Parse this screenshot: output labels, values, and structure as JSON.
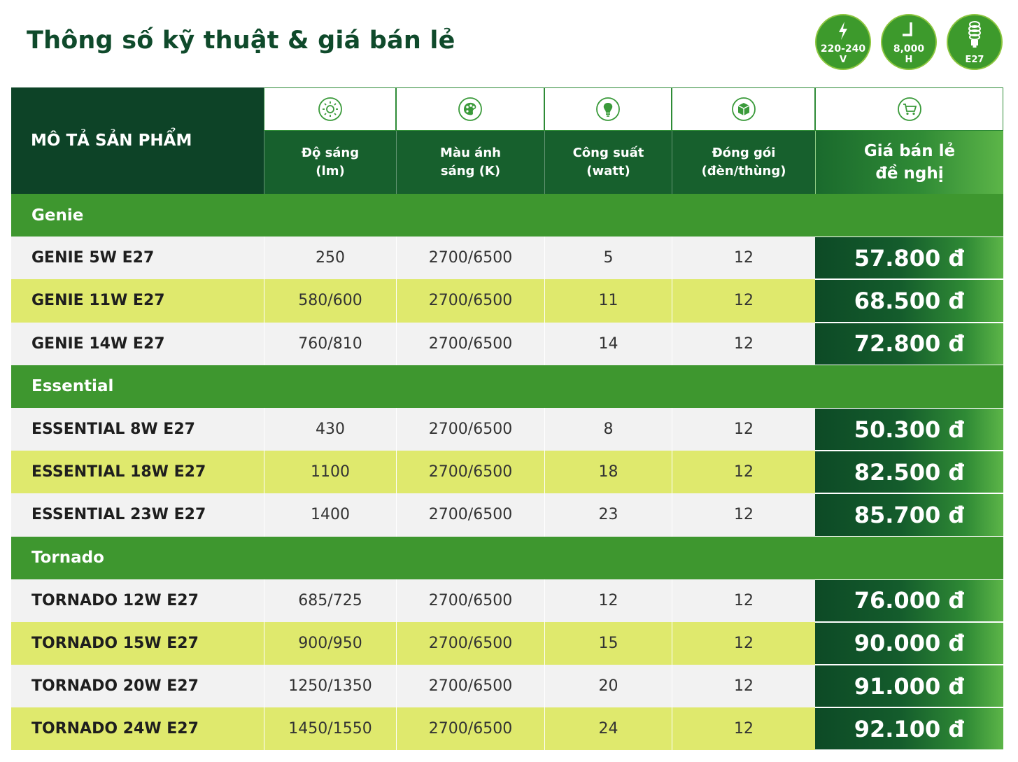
{
  "title": "Thông số kỹ thuật & giá bán lẻ",
  "badges": [
    {
      "icon": "lightning-icon",
      "line1": "220-240",
      "line2": "V"
    },
    {
      "icon": "clock-icon",
      "line1": "8,000",
      "line2": "H"
    },
    {
      "icon": "spiral-bulb-icon",
      "line1": "",
      "line2": "E27"
    }
  ],
  "header": {
    "description": "MÔ TẢ SẢN PHẨM",
    "columns": [
      {
        "icon": "sun-icon",
        "label": "Độ sáng\n(lm)"
      },
      {
        "icon": "palette-icon",
        "label": "Màu ánh\nsáng (K)"
      },
      {
        "icon": "bulb-icon",
        "label": "Công suất\n(watt)"
      },
      {
        "icon": "box-icon",
        "label": "Đóng gói\n(đèn/thùng)"
      },
      {
        "icon": "cart-icon",
        "label": "Giá bán lẻ\nđề nghị"
      }
    ]
  },
  "groups": [
    {
      "name": "Genie",
      "rows": [
        {
          "name": "GENIE 5W E27",
          "lumen": "250",
          "color": "2700/6500",
          "watt": "5",
          "pack": "12",
          "price": "57.800 đ"
        },
        {
          "name": "GENIE 11W E27",
          "lumen": "580/600",
          "color": "2700/6500",
          "watt": "11",
          "pack": "12",
          "price": "68.500 đ"
        },
        {
          "name": "GENIE 14W E27",
          "lumen": "760/810",
          "color": "2700/6500",
          "watt": "14",
          "pack": "12",
          "price": "72.800 đ"
        }
      ]
    },
    {
      "name": "Essential",
      "rows": [
        {
          "name": "ESSENTIAL 8W E27",
          "lumen": "430",
          "color": "2700/6500",
          "watt": "8",
          "pack": "12",
          "price": "50.300 đ"
        },
        {
          "name": "ESSENTIAL 18W E27",
          "lumen": "1100",
          "color": "2700/6500",
          "watt": "18",
          "pack": "12",
          "price": "82.500 đ"
        },
        {
          "name": "ESSENTIAL 23W E27",
          "lumen": "1400",
          "color": "2700/6500",
          "watt": "23",
          "pack": "12",
          "price": "85.700 đ"
        }
      ]
    },
    {
      "name": "Tornado",
      "rows": [
        {
          "name": "TORNADO 12W E27",
          "lumen": "685/725",
          "color": "2700/6500",
          "watt": "12",
          "pack": "12",
          "price": "76.000 đ"
        },
        {
          "name": "TORNADO 15W E27",
          "lumen": "900/950",
          "color": "2700/6500",
          "watt": "15",
          "pack": "12",
          "price": "90.000 đ"
        },
        {
          "name": "TORNADO 20W E27",
          "lumen": "1250/1350",
          "color": "2700/6500",
          "watt": "20",
          "pack": "12",
          "price": "91.000 đ"
        },
        {
          "name": "TORNADO 24W E27",
          "lumen": "1450/1550",
          "color": "2700/6500",
          "watt": "24",
          "pack": "12",
          "price": "92.100 đ"
        }
      ]
    }
  ],
  "colors": {
    "dark_green": "#0d4327",
    "group_green": "#3e972f",
    "row_light": "#f2f2f2",
    "row_lime": "#dfe96d",
    "accent_green": "#5cb548"
  }
}
